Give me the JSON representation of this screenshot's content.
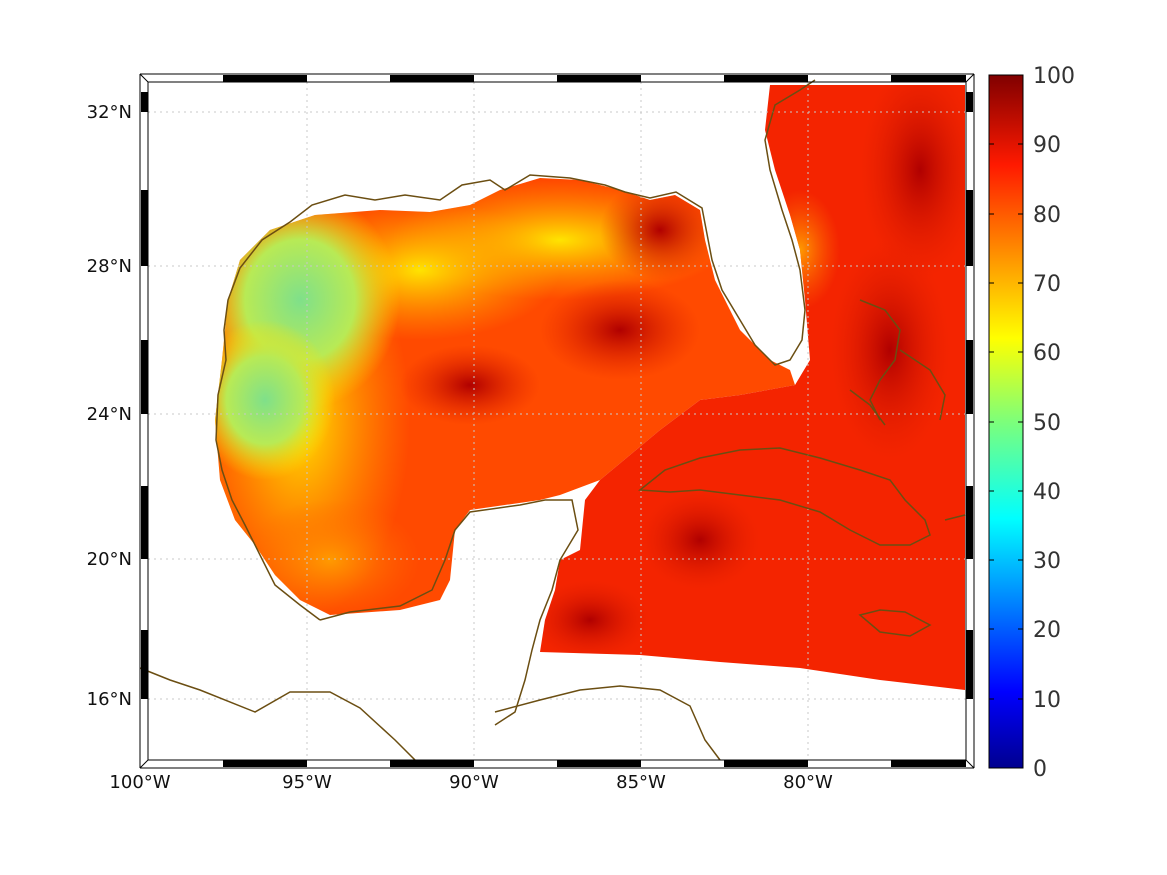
{
  "map": {
    "lon_ticks": [
      "100°W",
      "95°W",
      "90°W",
      "85°W",
      "80°W"
    ],
    "lat_ticks": [
      "32°N",
      "28°N",
      "24°N",
      "20°N",
      "16°N"
    ],
    "colorbar": {
      "ticks": [
        "100",
        "90",
        "80",
        "70",
        "60",
        "50",
        "40",
        "30",
        "20",
        "10",
        "0"
      ],
      "range": [
        0,
        100
      ],
      "colormap": "jet"
    },
    "coastline_color": "#6b4e12",
    "grid": "dotted",
    "extent": {
      "lon": [
        -100,
        -75
      ],
      "lat": [
        14.5,
        33
      ]
    }
  }
}
